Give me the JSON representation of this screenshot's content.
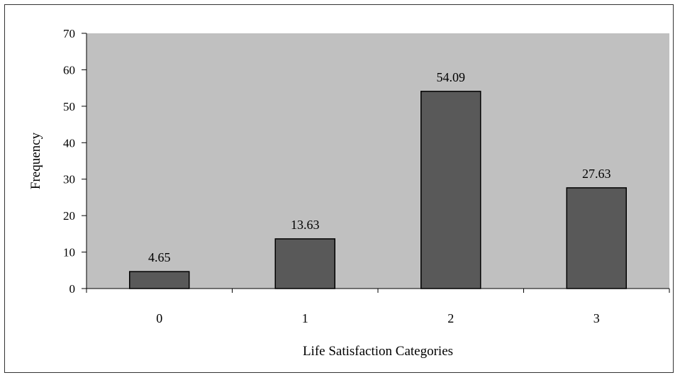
{
  "chart_data": {
    "type": "bar",
    "categories": [
      "0",
      "1",
      "2",
      "3"
    ],
    "values": [
      4.65,
      13.63,
      54.09,
      27.63
    ],
    "data_labels": [
      "4.65",
      "13.63",
      "54.09",
      "27.63"
    ],
    "xlabel": "Life Satisfaction Categories",
    "ylabel": "Frequency",
    "ylim": [
      0,
      70
    ],
    "yticks": [
      0,
      10,
      20,
      30,
      40,
      50,
      60,
      70
    ],
    "ytick_labels": [
      "0",
      "10",
      "20",
      "30",
      "40",
      "50",
      "60",
      "70"
    ],
    "grid": false,
    "legend": "none",
    "colors": {
      "plot_background": "#c0c0c0",
      "bar_fill": "#595959",
      "bar_stroke": "#000000"
    }
  }
}
